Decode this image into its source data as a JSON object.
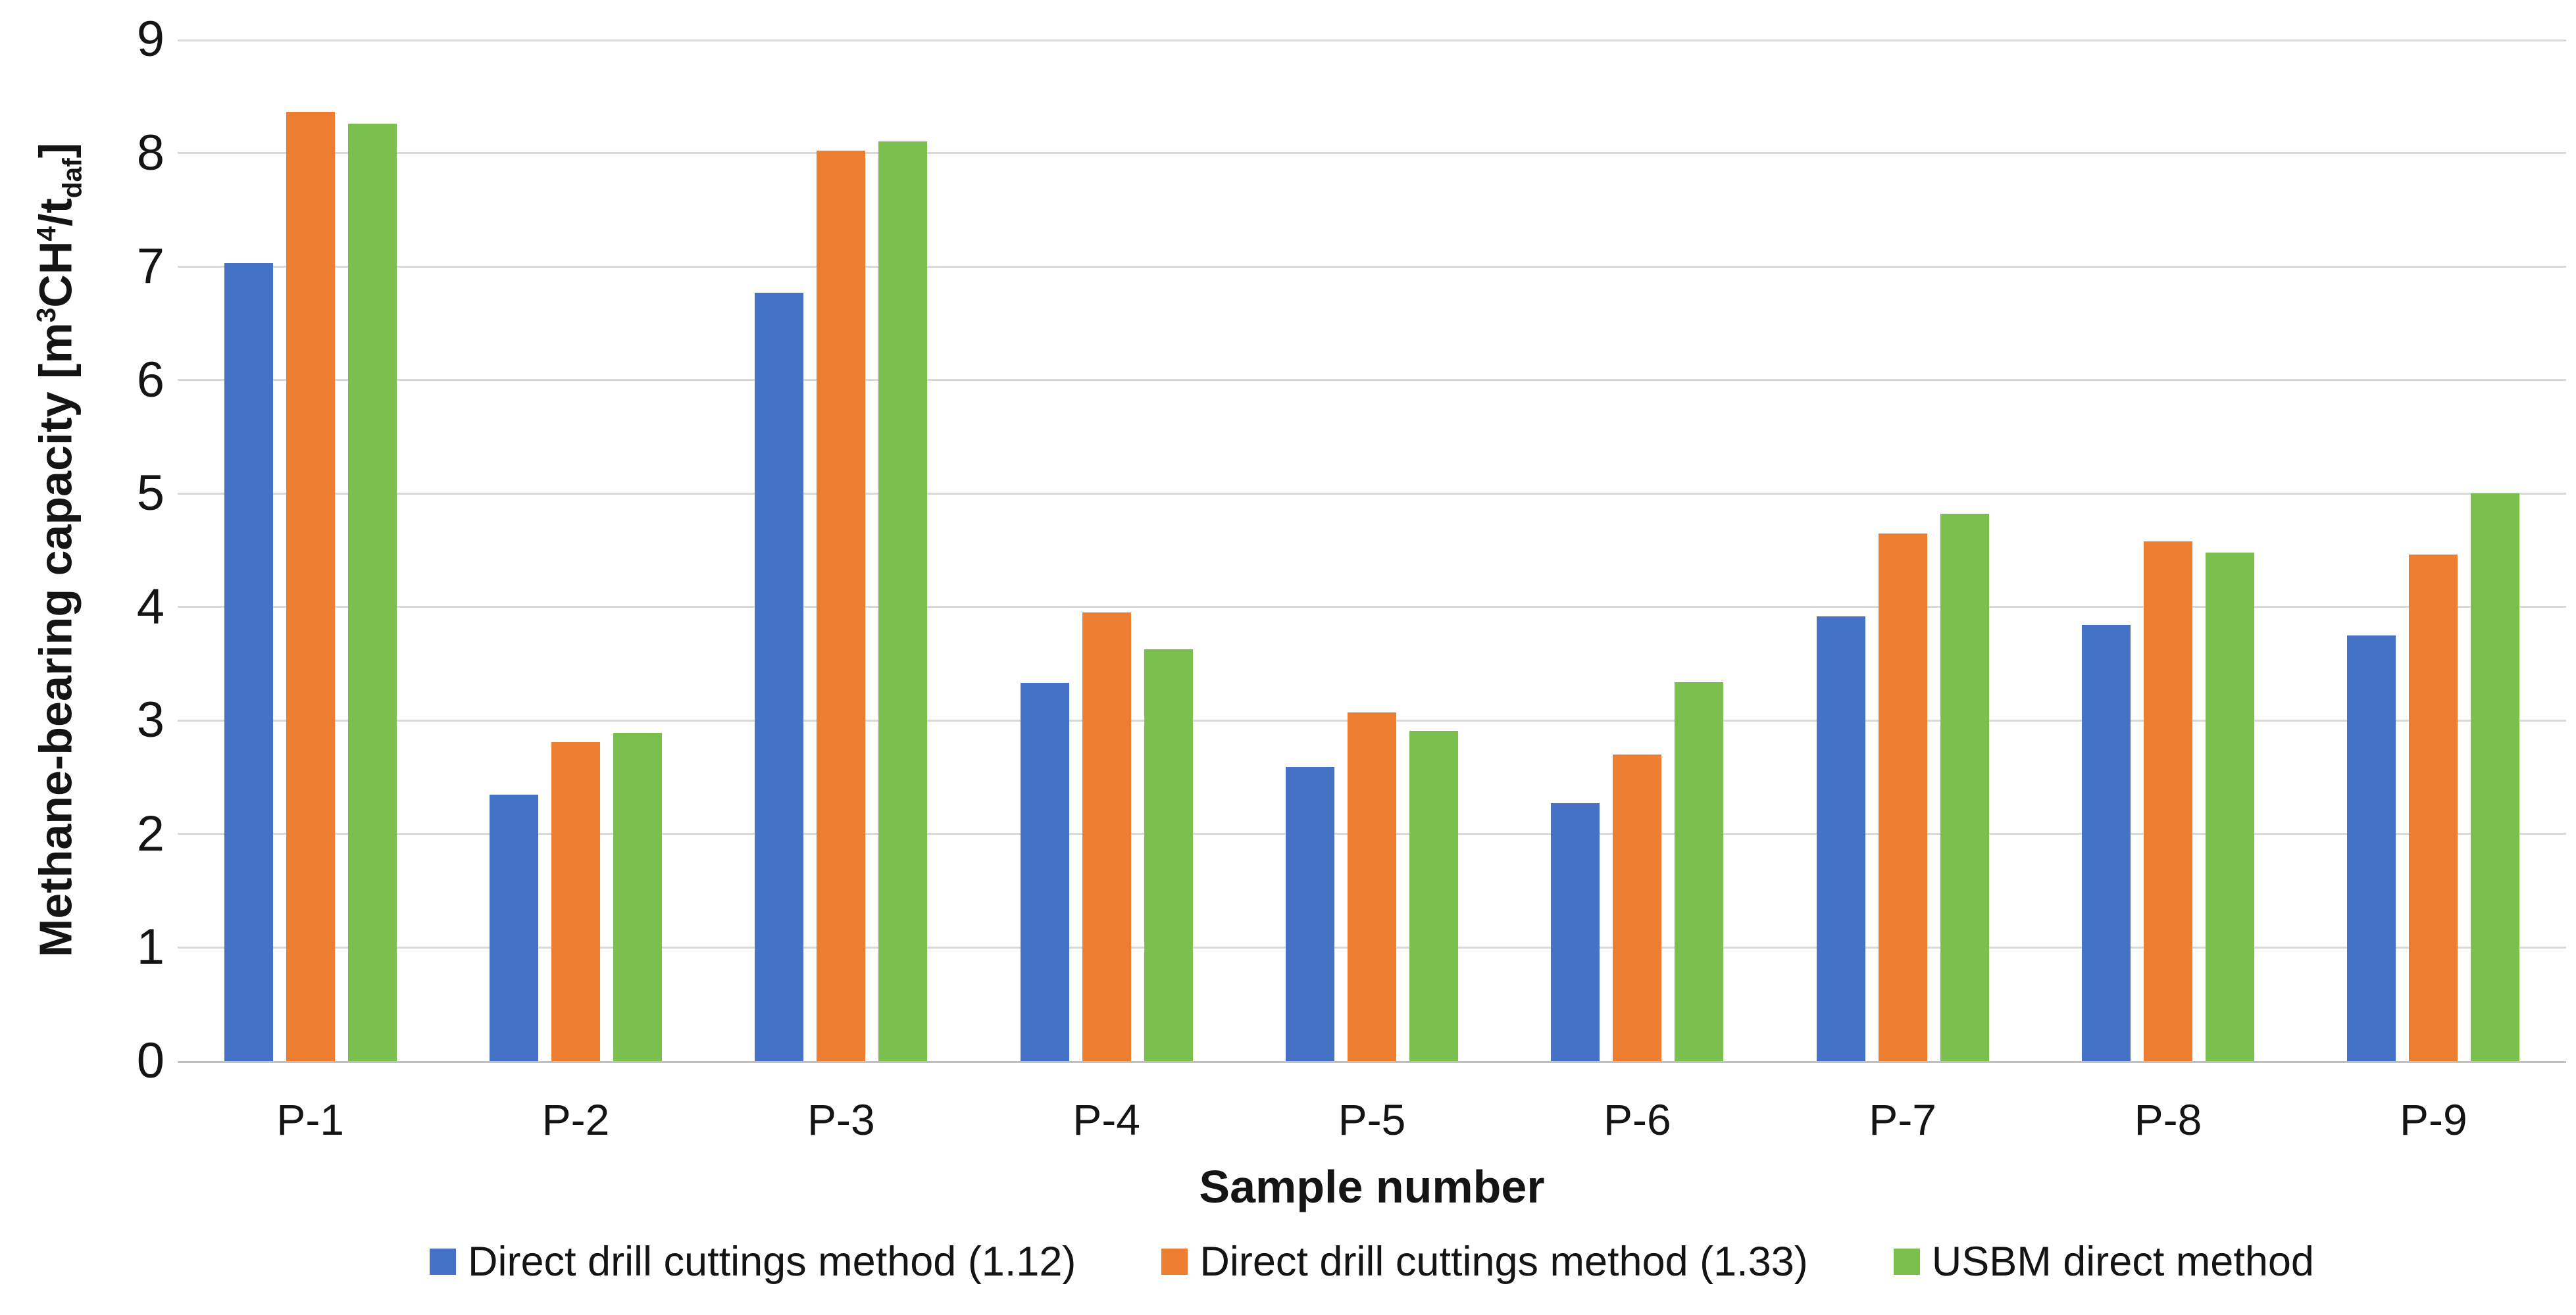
{
  "chart_data": {
    "type": "bar",
    "xlabel": "Sample number",
    "ylabel": "Methane-bearing capacity [m3CH4/tdaf]",
    "ylabel_parts": [
      {
        "text": "Methane-bearing capacity [m",
        "style": "normal"
      },
      {
        "text": "3",
        "style": "sup"
      },
      {
        "text": "CH",
        "style": "normal"
      },
      {
        "text": "4",
        "style": "sup"
      },
      {
        "text": "/t",
        "style": "normal"
      },
      {
        "text": "daf",
        "style": "sub"
      },
      {
        "text": "]",
        "style": "normal"
      }
    ],
    "categories": [
      "P-1",
      "P-2",
      "P-3",
      "P-4",
      "P-5",
      "P-6",
      "P-7",
      "P-8",
      "P-9"
    ],
    "series": [
      {
        "name": "Direct drill cuttings method (1.12)",
        "color": "#4472C4",
        "values": [
          7.03,
          2.35,
          6.77,
          3.33,
          2.59,
          2.27,
          3.92,
          3.84,
          3.75
        ]
      },
      {
        "name": "Direct drill cuttings method (1.33)",
        "color": "#ED7D31",
        "values": [
          8.36,
          2.81,
          8.02,
          3.95,
          3.07,
          2.7,
          4.65,
          4.58,
          4.46
        ]
      },
      {
        "name": "USBM direct method",
        "color": "#7BC04F",
        "values": [
          8.26,
          2.89,
          8.1,
          3.63,
          2.91,
          3.34,
          4.82,
          4.48,
          5.0
        ]
      }
    ],
    "ylim": [
      0,
      9
    ],
    "yticks": [
      0,
      1,
      2,
      3,
      4,
      5,
      6,
      7,
      8,
      9
    ],
    "grid": true,
    "legend_position": "bottom",
    "gridline_color": "#d9d9d9",
    "axis_line_color": "#bfbfbf",
    "text_color": "#141414",
    "background_color": "#ffffff"
  }
}
